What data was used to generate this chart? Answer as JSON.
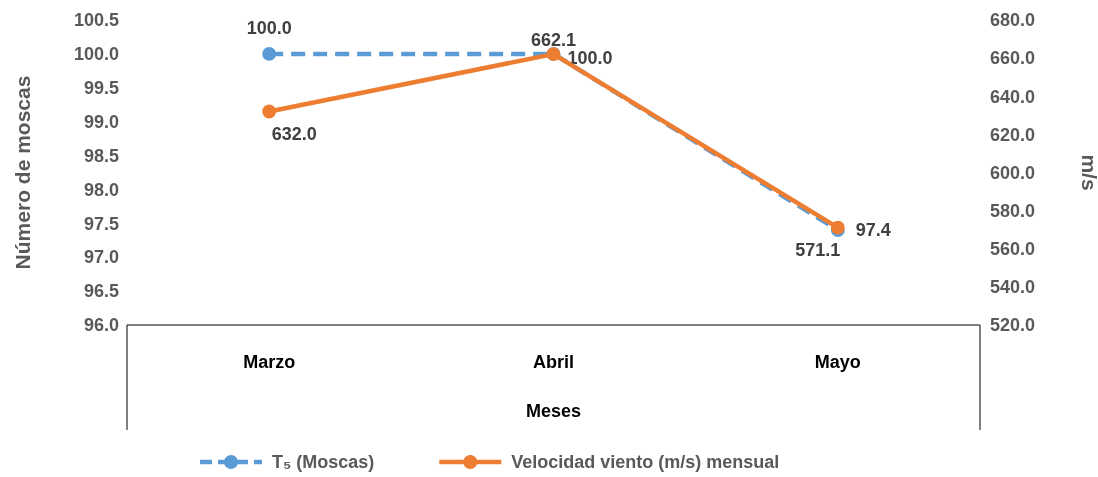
{
  "chart_data": {
    "type": "line",
    "xlabel": "Meses",
    "ylabel": "Número de moscas",
    "y2label": "m/s",
    "categories": [
      "Marzo",
      "Abril",
      "Mayo"
    ],
    "series": [
      {
        "name": "T₅ (Moscas)",
        "color": "#5b9bd5",
        "values": [
          100.0,
          100.0,
          97.4
        ],
        "value_labels": [
          "100.0",
          "100.0",
          "97.4"
        ],
        "line_style": "dashed"
      },
      {
        "name": "Velocidad viento (m/s) mensual",
        "color": "#ed7d31",
        "values": [
          632.0,
          662.1,
          571.1
        ],
        "value_labels": [
          "632.0",
          "662.1",
          "571.1"
        ],
        "axis": "y2",
        "line_style": "solid"
      }
    ],
    "ylim": [
      96.0,
      100.5
    ],
    "yticks": [
      {
        "value": 96,
        "label": "96.0"
      },
      {
        "value": 96.5,
        "label": "96.5"
      },
      {
        "value": 97,
        "label": "97.0"
      },
      {
        "value": 97.5,
        "label": "97.5"
      },
      {
        "value": 98,
        "label": "98.0"
      },
      {
        "value": 98.5,
        "label": "98.5"
      },
      {
        "value": 99,
        "label": "99.0"
      },
      {
        "value": 99.5,
        "label": "99.5"
      },
      {
        "value": 100,
        "label": "100.0"
      },
      {
        "value": 100.5,
        "label": "100.5"
      }
    ],
    "y2lim": [
      520,
      680
    ],
    "y2ticks": [
      {
        "value": 520,
        "label": "520.0"
      },
      {
        "value": 540,
        "label": "540.0"
      },
      {
        "value": 560,
        "label": "560.0"
      },
      {
        "value": 580,
        "label": "580.0"
      },
      {
        "value": 600,
        "label": "600.0"
      },
      {
        "value": 620,
        "label": "620.0"
      },
      {
        "value": 640,
        "label": "640.0"
      },
      {
        "value": 660,
        "label": "660.0"
      },
      {
        "value": 680,
        "label": "680.0"
      }
    ],
    "marker": "circle",
    "grid": false,
    "legend": "bottom"
  }
}
